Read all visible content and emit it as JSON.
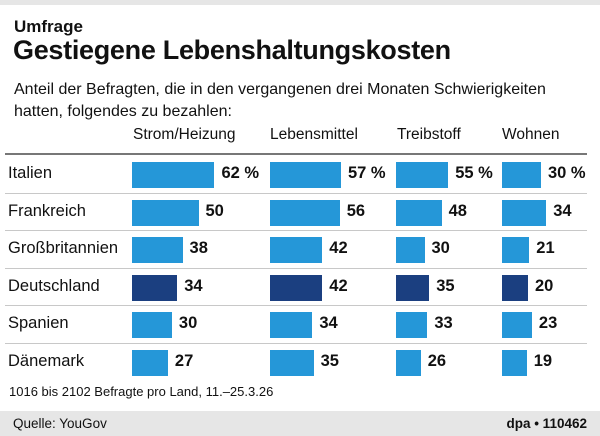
{
  "header": {
    "kicker": "Umfrage",
    "title": "Gestiegene Lebenshaltungskosten",
    "subtitle": "Anteil der Befragten, die in den vergangenen drei Monaten Schwierigkeiten hatten, folgendes zu bezahlen:"
  },
  "chart_data": {
    "type": "bar",
    "unit": "%",
    "categories": [
      "Italien",
      "Frankreich",
      "Großbritannien",
      "Deutschland",
      "Spanien",
      "Dänemark"
    ],
    "highlight": "Deutschland",
    "series": [
      {
        "name": "Strom/Heizung",
        "values": [
          62,
          50,
          38,
          34,
          30,
          27
        ]
      },
      {
        "name": "Lebensmittel",
        "values": [
          57,
          56,
          42,
          42,
          34,
          35
        ]
      },
      {
        "name": "Treibstoff",
        "values": [
          55,
          48,
          30,
          35,
          33,
          26
        ]
      },
      {
        "name": "Wohnen",
        "values": [
          30,
          34,
          21,
          20,
          23,
          19
        ]
      }
    ],
    "colors": {
      "bar": "#2597d8",
      "highlight": "#1b3f80"
    }
  },
  "footer": {
    "note": "1016 bis 2102 Befragte pro Land, 11.–25.3.26",
    "source": "Quelle: YouGov",
    "credit": "dpa • 110462"
  }
}
